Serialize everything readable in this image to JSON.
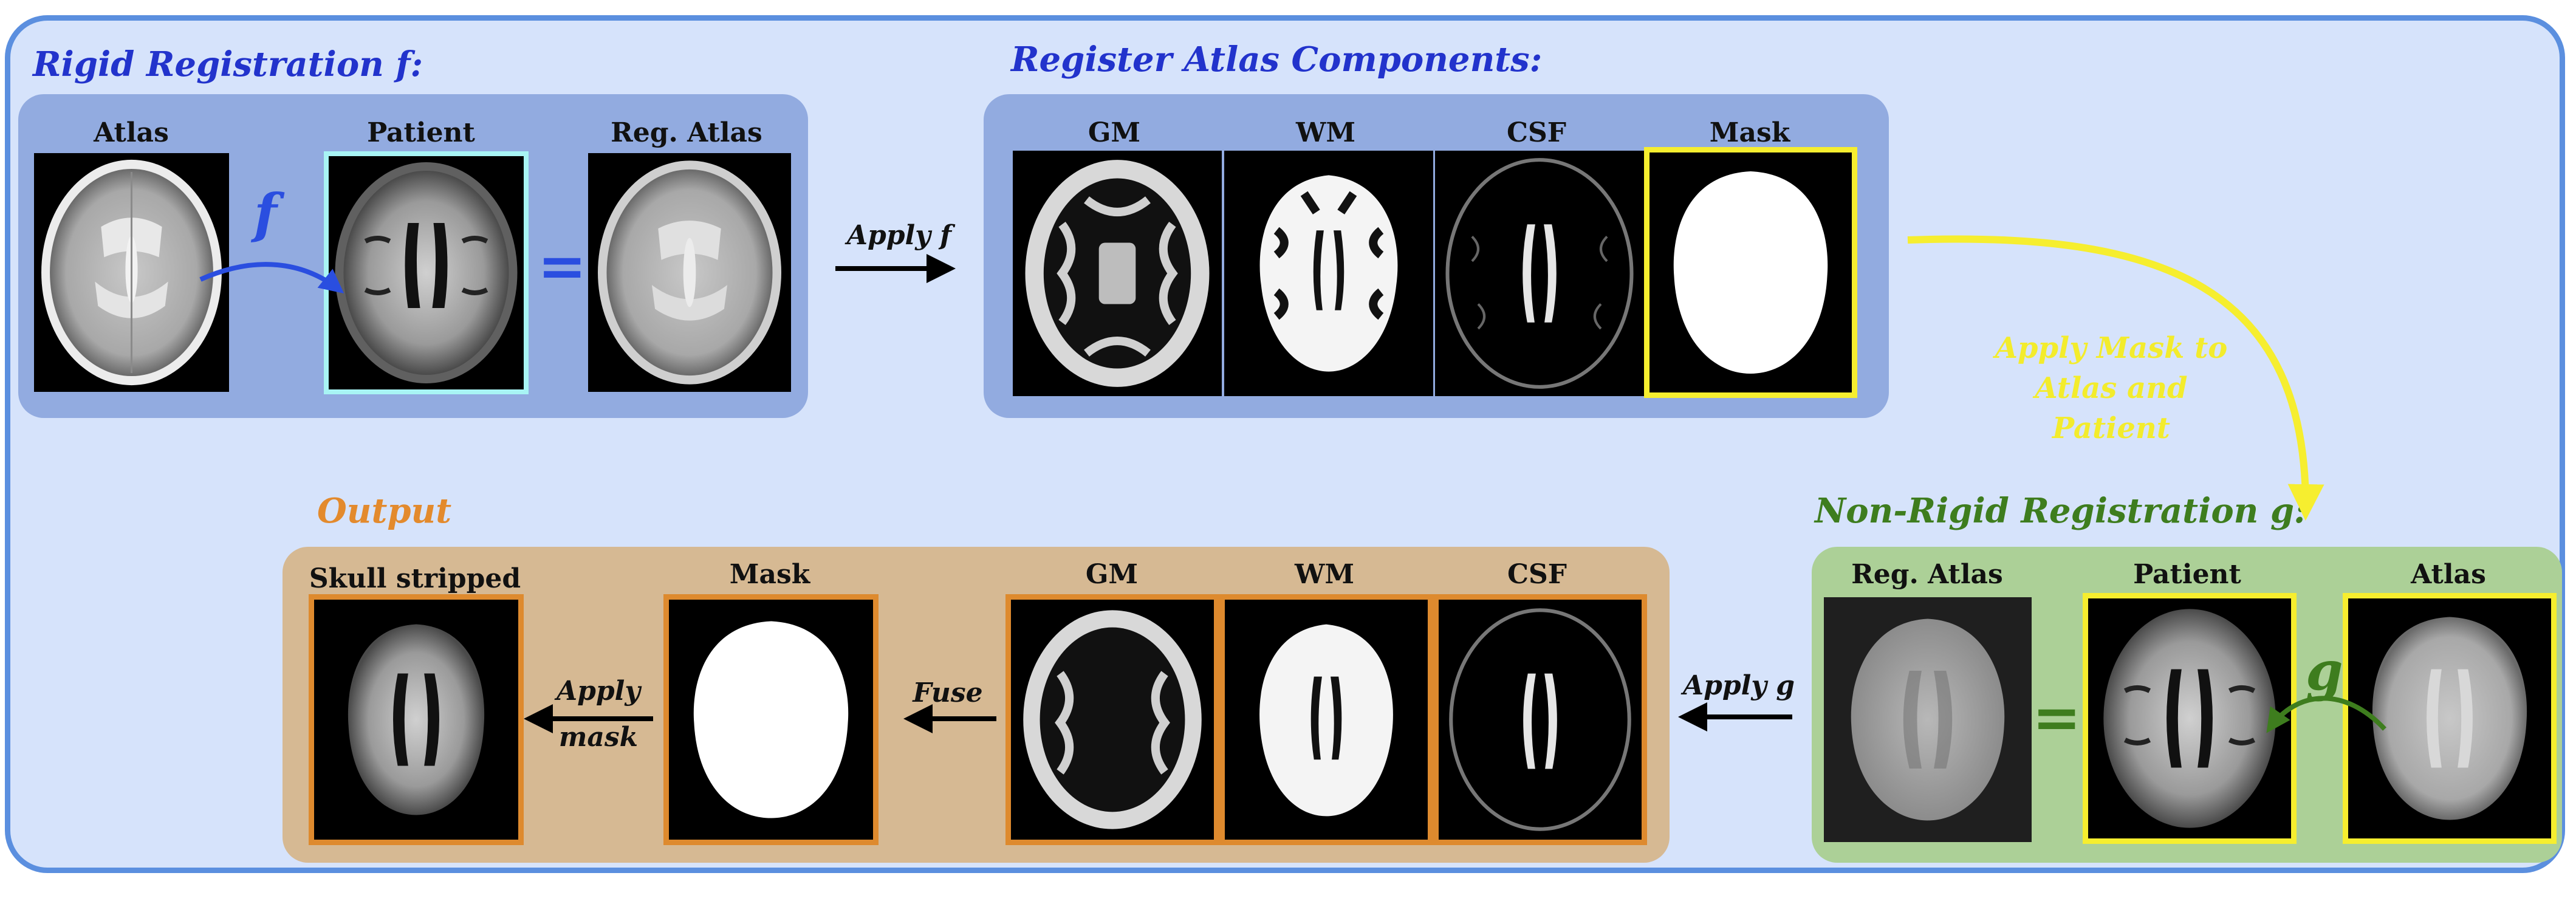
{
  "sections": {
    "rigid": "Rigid Registration f:",
    "register": "Register Atlas Components:",
    "nonrigid": "Non-Rigid Registration g:",
    "output": "Output"
  },
  "rigid": {
    "atlas": "Atlas",
    "patient": "Patient",
    "reg_atlas": "Reg. Atlas",
    "f_symbol": "f",
    "equals": "="
  },
  "register": {
    "gm": "GM",
    "wm": "WM",
    "csf": "CSF",
    "mask": "Mask"
  },
  "nonrigid": {
    "reg_atlas": "Reg. Atlas",
    "patient": "Patient",
    "atlas": "Atlas",
    "g_symbol": "g",
    "equals": "="
  },
  "output": {
    "skull": "Skull stripped",
    "mask": "Mask",
    "gm": "GM",
    "wm": "WM",
    "csf": "CSF"
  },
  "arrows": {
    "apply_f": "Apply f",
    "apply_mask_line1": "Apply Mask to",
    "apply_mask_line2": "Atlas and",
    "apply_mask_line3": "Patient",
    "apply_g": "Apply g",
    "fuse": "Fuse",
    "apply_mask_a": "Apply",
    "apply_mask_b": "mask"
  },
  "colors": {
    "frame": "#5b8fdf",
    "background": "#d6e3fb",
    "title_blue": "#2233cc",
    "title_green": "#3e7d1e",
    "title_orange": "#e38a2d",
    "highlight_cyan": "#a8f4f4",
    "highlight_yellow": "#f6ee2f",
    "highlight_orange": "#de8a2e"
  }
}
